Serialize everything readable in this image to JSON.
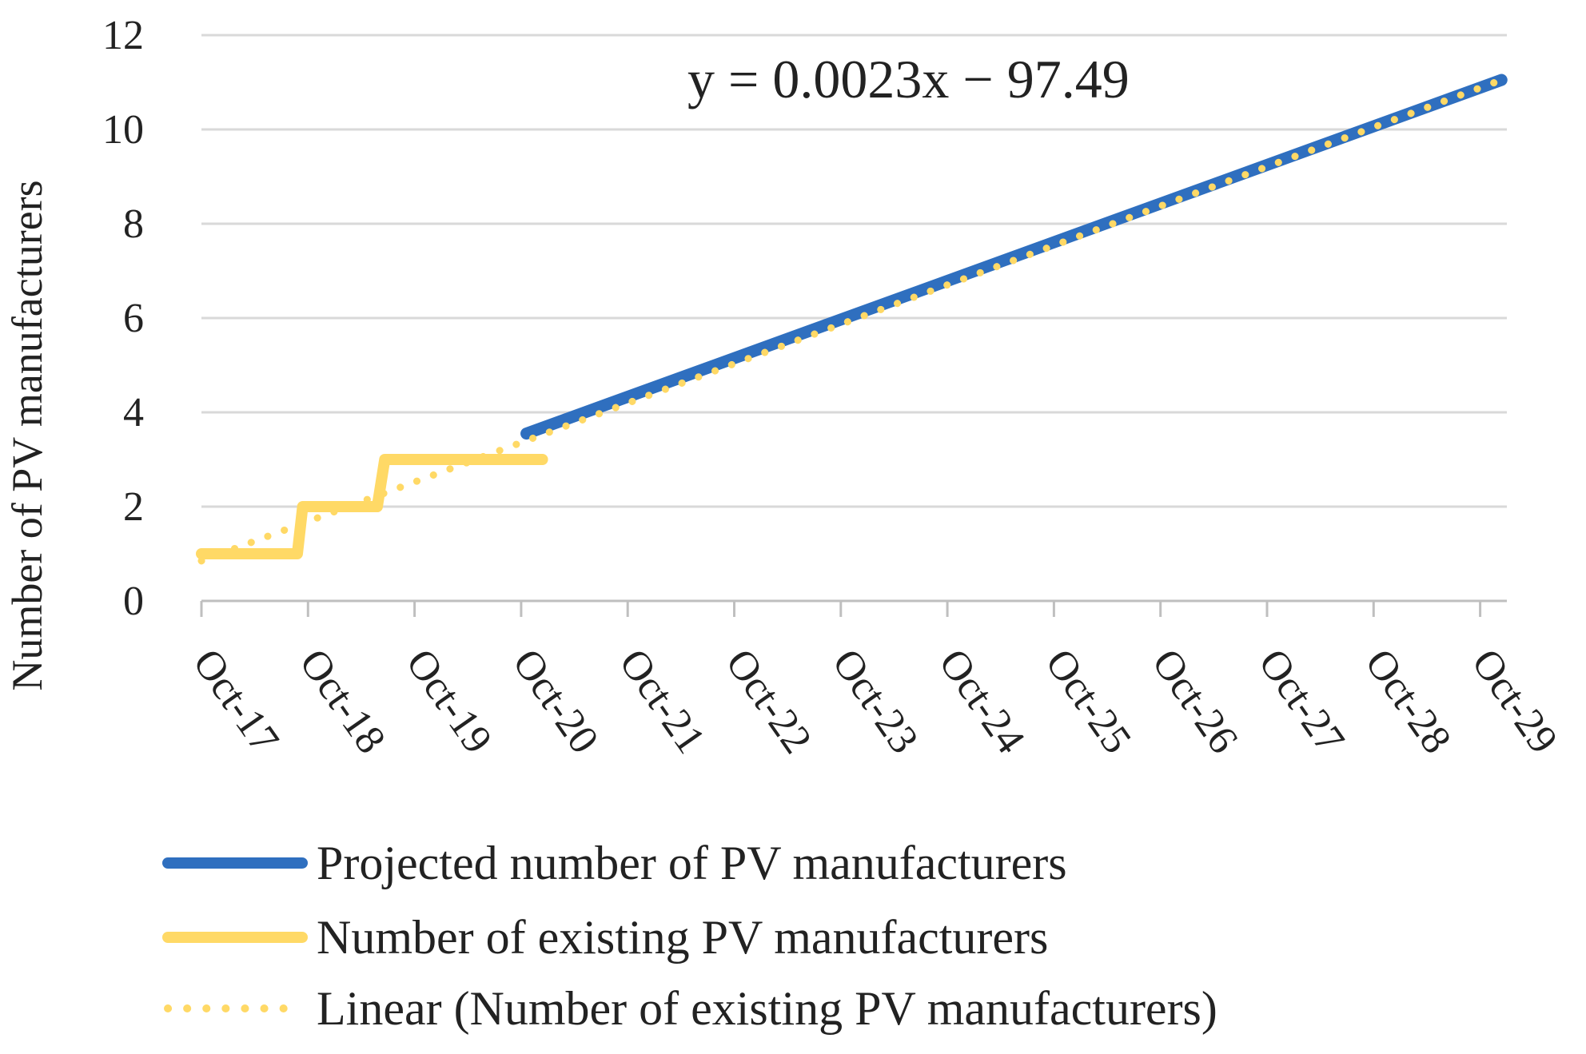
{
  "chart_data": {
    "type": "line",
    "title": "",
    "xlabel": "",
    "ylabel": "Number of PV manufacturers",
    "ylim": [
      0,
      12
    ],
    "yticks": [
      0,
      2,
      4,
      6,
      8,
      10,
      12
    ],
    "categories": [
      "Oct-17",
      "Oct-18",
      "Oct-19",
      "Oct-20",
      "Oct-21",
      "Oct-22",
      "Oct-23",
      "Oct-24",
      "Oct-25",
      "Oct-26",
      "Oct-27",
      "Oct-28",
      "Oct-29"
    ],
    "grid": true,
    "annotation": "y = 0.0023x − 97.49",
    "colors": {
      "projected": "#2f6fbf",
      "existing": "#ffd966",
      "trend": "#ffd966",
      "grid": "#d9d9d9",
      "axis": "#bfbfbf"
    },
    "series": [
      {
        "name": "Projected number of PV manufacturers",
        "style": "solid",
        "x": [
          3.05,
          12.2
        ],
        "y": [
          3.55,
          11.05
        ]
      },
      {
        "name": "Number of existing PV manufacturers",
        "style": "step",
        "x": [
          0.0,
          0.9,
          0.95,
          1.65,
          1.72,
          3.2
        ],
        "y": [
          1.0,
          1.0,
          2.0,
          2.0,
          3.0,
          3.0
        ]
      },
      {
        "name": "Linear (Number of existing PV manufacturers)",
        "style": "dotted",
        "x": [
          0.0,
          12.2
        ],
        "y": [
          0.85,
          11.05
        ]
      }
    ],
    "legend": [
      {
        "label": "Projected number of PV manufacturers",
        "style": "solid",
        "color": "#2f6fbf"
      },
      {
        "label": "Number of existing PV manufacturers",
        "style": "solid",
        "color": "#ffd966"
      },
      {
        "label": "Linear (Number of existing PV manufacturers)",
        "style": "dotted",
        "color": "#ffd966"
      }
    ],
    "legend_position": "bottom"
  }
}
